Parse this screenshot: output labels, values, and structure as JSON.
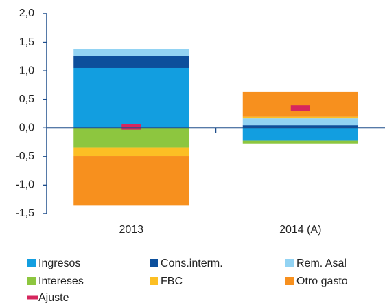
{
  "chart_data": {
    "type": "bar",
    "stacked": true,
    "categories": [
      "2013",
      "2014 (A)"
    ],
    "series": [
      {
        "name": "Ingresos",
        "color": "#129ee0",
        "values": [
          1.05,
          -0.22
        ]
      },
      {
        "name": "Cons.interm.",
        "color": "#0c4f9c",
        "values": [
          0.21,
          0.05
        ]
      },
      {
        "name": "Rem. Asal",
        "color": "#92d3f3",
        "values": [
          0.12,
          0.12
        ]
      },
      {
        "name": "Intereses",
        "color": "#8dc63f",
        "values": [
          -0.34,
          -0.05
        ]
      },
      {
        "name": "FBC",
        "color": "#fcbf24",
        "values": [
          -0.15,
          0.03
        ]
      },
      {
        "name": "Otro gasto",
        "color": "#f7901e",
        "values": [
          -0.87,
          0.43
        ]
      },
      {
        "name": "Ajuste",
        "color": "#d6265d",
        "values": [
          0.02,
          0.35
        ],
        "type": "marker"
      }
    ],
    "ylim": [
      -1.5,
      2.0
    ],
    "yticks": [
      {
        "value": -1.5,
        "label": "-1,5"
      },
      {
        "value": -1.0,
        "label": "-1,0"
      },
      {
        "value": -0.5,
        "label": "-0,5"
      },
      {
        "value": 0,
        "label": "0,0"
      },
      {
        "value": 0.5,
        "label": "0,5"
      },
      {
        "value": 1.0,
        "label": "1,0"
      },
      {
        "value": 1.5,
        "label": "1,5"
      },
      {
        "value": 2.0,
        "label": "2,0"
      }
    ]
  }
}
